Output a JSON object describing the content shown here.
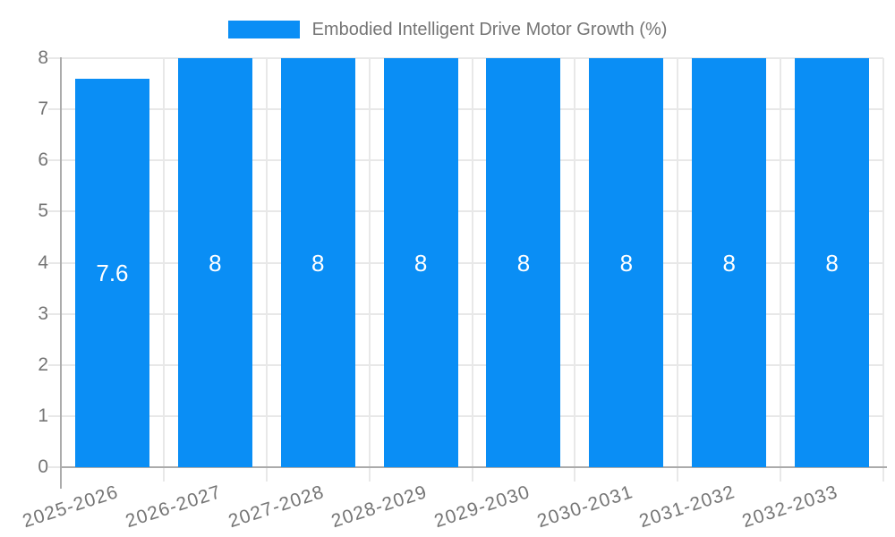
{
  "legend": {
    "label": "Embodied Intelligent Drive Motor Growth (%)"
  },
  "chart_data": {
    "type": "bar",
    "title": "Embodied Intelligent Drive Motor Growth (%)",
    "xlabel": "",
    "ylabel": "",
    "categories": [
      "2025-2026",
      "2026-2027",
      "2027-2028",
      "2028-2029",
      "2029-2030",
      "2030-2031",
      "2031-2032",
      "2032-2033"
    ],
    "values": [
      7.6,
      8,
      8,
      8,
      8,
      8,
      8,
      8
    ],
    "value_labels": [
      "7.6",
      "8",
      "8",
      "8",
      "8",
      "8",
      "8",
      "8"
    ],
    "ylim": [
      0,
      8
    ],
    "yticks": [
      0,
      1,
      2,
      3,
      4,
      5,
      6,
      7,
      8
    ],
    "grid": true,
    "legend_position": "top",
    "colors": {
      "bar": "#0a8ef5",
      "grid": "#e8e8e8",
      "axis": "#ababab",
      "text": "#757575",
      "bar_label": "#ffffff",
      "background": "#ffffff"
    }
  }
}
